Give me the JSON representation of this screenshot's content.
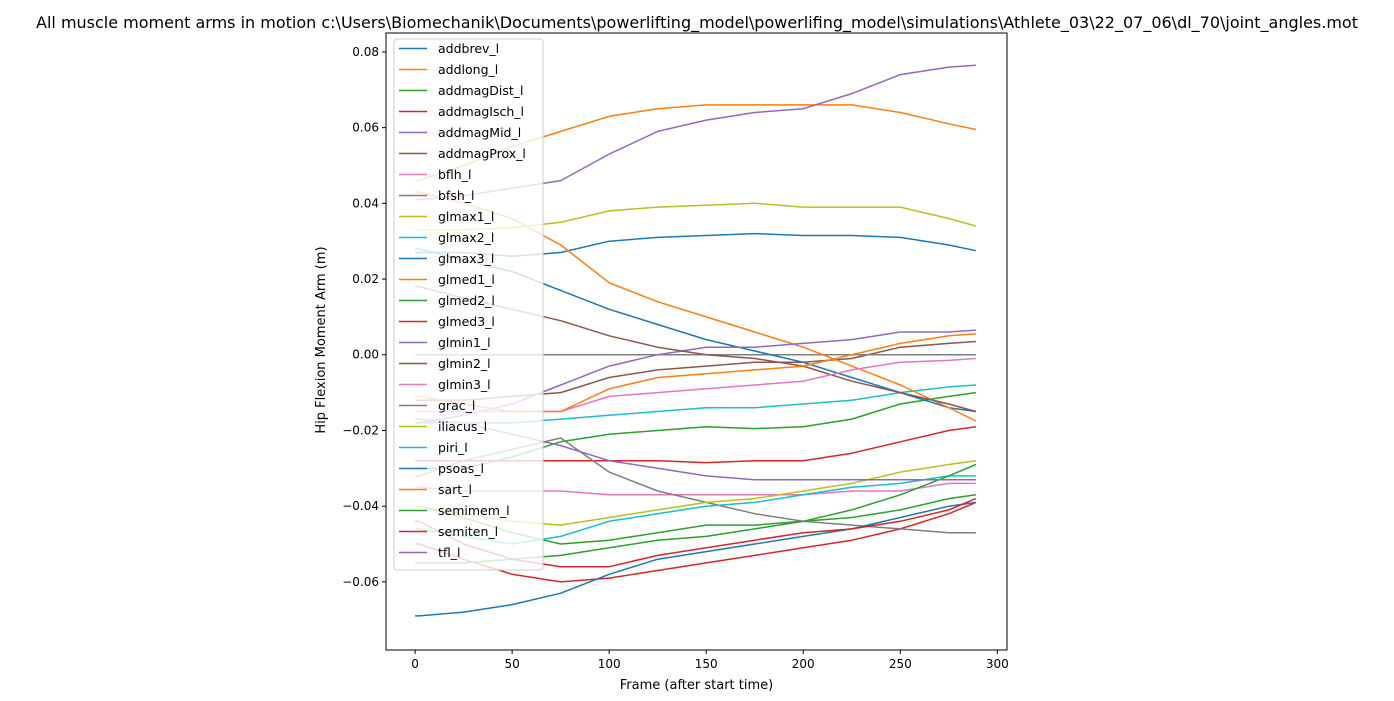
{
  "chart_data": {
    "type": "line",
    "title": "All muscle moment arms in motion c:\\Users\\Biomechanik\\Documents\\powerlifting_model\\powerlifing_model\\simulations\\Athlete_03\\22_07_06\\dl_70\\joint_angles.mot",
    "xlabel": "Frame (after start time)",
    "ylabel": "Hip Flexion Moment Arm (m)",
    "xlim": [
      -15,
      305
    ],
    "ylim": [
      -0.078,
      0.085
    ],
    "xticks": [
      0,
      50,
      100,
      150,
      200,
      250,
      300
    ],
    "xtick_labels": [
      "0",
      "50",
      "100",
      "150",
      "200",
      "250",
      "300"
    ],
    "yticks": [
      -0.06,
      -0.04,
      -0.02,
      0.0,
      0.02,
      0.04,
      0.06,
      0.08
    ],
    "ytick_labels": [
      "−0.06",
      "−0.04",
      "−0.02",
      "0.00",
      "0.02",
      "0.04",
      "0.06",
      "0.08"
    ],
    "grid": false,
    "legend_position": "upper-left",
    "x": [
      0,
      2,
      25,
      50,
      75,
      100,
      125,
      150,
      175,
      200,
      225,
      250,
      275,
      289
    ],
    "series": [
      {
        "name": "addbrev_l",
        "color": "#1f77b4",
        "values": [
          0.027,
          0.027,
          0.027,
          0.026,
          0.027,
          0.03,
          0.031,
          0.0315,
          0.032,
          0.0315,
          0.0315,
          0.031,
          0.029,
          0.0275
        ]
      },
      {
        "name": "addlong_l",
        "color": "#ff7f0e",
        "values": [
          0.046,
          0.046,
          0.05,
          0.055,
          0.059,
          0.063,
          0.065,
          0.066,
          0.066,
          0.066,
          0.066,
          0.064,
          0.061,
          0.0595
        ]
      },
      {
        "name": "addmagDist_l",
        "color": "#2ca02c",
        "values": [
          -0.03,
          -0.03,
          -0.03,
          -0.027,
          -0.023,
          -0.021,
          -0.02,
          -0.019,
          -0.0195,
          -0.019,
          -0.017,
          -0.013,
          -0.011,
          -0.01
        ]
      },
      {
        "name": "addmagIsch_l",
        "color": "#d62728",
        "values": [
          -0.028,
          -0.028,
          -0.028,
          -0.028,
          -0.028,
          -0.028,
          -0.028,
          -0.0285,
          -0.028,
          -0.028,
          -0.026,
          -0.023,
          -0.02,
          -0.019
        ]
      },
      {
        "name": "addmagMid_l",
        "color": "#9467bd",
        "values": [
          0.041,
          0.041,
          0.042,
          0.044,
          0.046,
          0.053,
          0.059,
          0.062,
          0.064,
          0.065,
          0.069,
          0.074,
          0.076,
          0.0765
        ]
      },
      {
        "name": "addmagProx_l",
        "color": "#8c564b",
        "values": [
          -0.012,
          -0.012,
          -0.012,
          -0.011,
          -0.01,
          -0.006,
          -0.004,
          -0.003,
          -0.002,
          -0.002,
          -0.001,
          0.002,
          0.003,
          0.0035
        ]
      },
      {
        "name": "bflh_l",
        "color": "#e377c2",
        "values": [
          -0.035,
          -0.035,
          -0.036,
          -0.036,
          -0.036,
          -0.037,
          -0.037,
          -0.037,
          -0.037,
          -0.037,
          -0.036,
          -0.036,
          -0.034,
          -0.034
        ]
      },
      {
        "name": "bfsh_l",
        "color": "#7f7f7f",
        "values": [
          0.0,
          0.0,
          0.0,
          0.0,
          0.0,
          0.0,
          0.0,
          0.0,
          0.0,
          0.0,
          0.0,
          0.0,
          0.0,
          0.0
        ]
      },
      {
        "name": "glmax1_l",
        "color": "#bcbd22",
        "values": [
          0.033,
          0.033,
          0.033,
          0.0335,
          0.035,
          0.038,
          0.039,
          0.0395,
          0.04,
          0.039,
          0.039,
          0.039,
          0.036,
          0.034
        ]
      },
      {
        "name": "glmax2_l",
        "color": "#17becf",
        "values": [
          -0.018,
          -0.018,
          -0.018,
          -0.018,
          -0.017,
          -0.016,
          -0.015,
          -0.014,
          -0.014,
          -0.013,
          -0.012,
          -0.01,
          -0.0085,
          -0.008
        ]
      },
      {
        "name": "glmax3_l",
        "color": "#1f77b4",
        "values": [
          0.028,
          0.028,
          0.025,
          0.022,
          0.017,
          0.012,
          0.008,
          0.004,
          0.001,
          -0.002,
          -0.006,
          -0.01,
          -0.014,
          -0.015
        ]
      },
      {
        "name": "glmed1_l",
        "color": "#ff7f0e",
        "values": [
          0.043,
          0.043,
          0.04,
          0.036,
          0.029,
          0.019,
          0.014,
          0.01,
          0.006,
          0.002,
          -0.003,
          -0.008,
          -0.014,
          -0.0175
        ]
      },
      {
        "name": "glmed2_l",
        "color": "#2ca02c",
        "values": [
          -0.04,
          -0.04,
          -0.043,
          -0.047,
          -0.05,
          -0.049,
          -0.047,
          -0.045,
          -0.045,
          -0.044,
          -0.043,
          -0.041,
          -0.038,
          -0.037
        ]
      },
      {
        "name": "glmed3_l",
        "color": "#d62728",
        "values": [
          -0.05,
          -0.05,
          -0.054,
          -0.058,
          -0.06,
          -0.059,
          -0.057,
          -0.055,
          -0.053,
          -0.051,
          -0.049,
          -0.046,
          -0.042,
          -0.039
        ]
      },
      {
        "name": "glmin1_l",
        "color": "#9467bd",
        "values": [
          -0.018,
          -0.018,
          -0.016,
          -0.013,
          -0.008,
          -0.003,
          0.0,
          0.002,
          0.002,
          0.003,
          0.004,
          0.006,
          0.006,
          0.0065
        ]
      },
      {
        "name": "glmin2_l",
        "color": "#8c564b",
        "values": [
          0.018,
          0.018,
          0.015,
          0.012,
          0.009,
          0.005,
          0.002,
          0.0,
          -0.001,
          -0.003,
          -0.007,
          -0.01,
          -0.013,
          -0.015
        ]
      },
      {
        "name": "glmin3_l",
        "color": "#e377c2",
        "values": [
          -0.015,
          -0.015,
          -0.015,
          -0.015,
          -0.015,
          -0.011,
          -0.01,
          -0.009,
          -0.008,
          -0.007,
          -0.004,
          -0.002,
          -0.0015,
          -0.001
        ]
      },
      {
        "name": "grac_l",
        "color": "#7f7f7f",
        "values": [
          -0.032,
          -0.032,
          -0.028,
          -0.025,
          -0.022,
          -0.031,
          -0.036,
          -0.039,
          -0.042,
          -0.044,
          -0.045,
          -0.046,
          -0.047,
          -0.047
        ]
      },
      {
        "name": "iliacus_l",
        "color": "#bcbd22",
        "values": [
          -0.04,
          -0.04,
          -0.042,
          -0.044,
          -0.045,
          -0.043,
          -0.041,
          -0.039,
          -0.038,
          -0.036,
          -0.034,
          -0.031,
          -0.029,
          -0.028
        ]
      },
      {
        "name": "piri_l",
        "color": "#17becf",
        "values": [
          -0.046,
          -0.046,
          -0.048,
          -0.05,
          -0.048,
          -0.044,
          -0.042,
          -0.04,
          -0.039,
          -0.037,
          -0.035,
          -0.034,
          -0.032,
          -0.032
        ]
      },
      {
        "name": "psoas_l",
        "color": "#1f77b4",
        "values": [
          -0.069,
          -0.069,
          -0.068,
          -0.066,
          -0.063,
          -0.058,
          -0.054,
          -0.052,
          -0.05,
          -0.048,
          -0.046,
          -0.043,
          -0.04,
          -0.039
        ]
      },
      {
        "name": "sart_l",
        "color": "#ff7f0e",
        "values": [
          -0.011,
          -0.011,
          -0.013,
          -0.015,
          -0.015,
          -0.009,
          -0.006,
          -0.005,
          -0.004,
          -0.003,
          0.0,
          0.003,
          0.005,
          0.0055
        ]
      },
      {
        "name": "semimem_l",
        "color": "#2ca02c",
        "values": [
          -0.055,
          -0.055,
          -0.055,
          -0.054,
          -0.053,
          -0.051,
          -0.049,
          -0.048,
          -0.046,
          -0.044,
          -0.041,
          -0.037,
          -0.032,
          -0.029
        ]
      },
      {
        "name": "semiten_l",
        "color": "#d62728",
        "values": [
          -0.044,
          -0.044,
          -0.05,
          -0.054,
          -0.056,
          -0.056,
          -0.053,
          -0.051,
          -0.049,
          -0.047,
          -0.046,
          -0.044,
          -0.041,
          -0.038
        ]
      },
      {
        "name": "tfl_l",
        "color": "#9467bd",
        "values": [
          -0.017,
          -0.017,
          -0.018,
          -0.021,
          -0.024,
          -0.028,
          -0.03,
          -0.032,
          -0.033,
          -0.033,
          -0.033,
          -0.033,
          -0.033,
          -0.033
        ]
      }
    ]
  }
}
